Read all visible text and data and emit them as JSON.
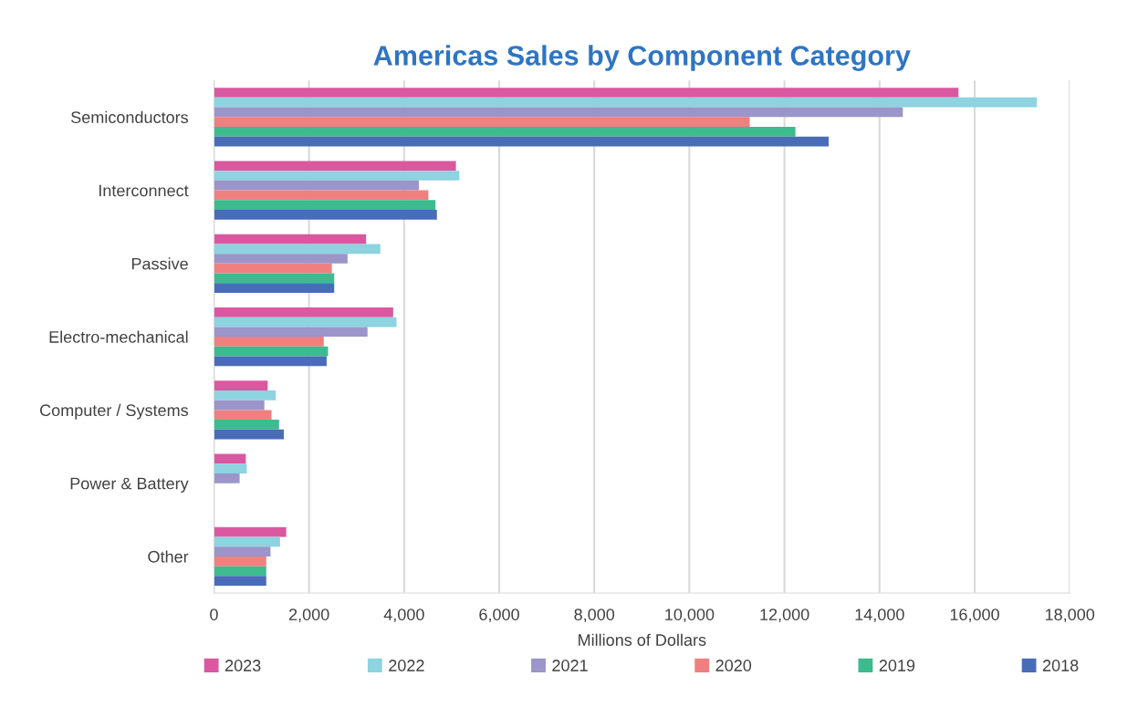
{
  "chart_data": {
    "type": "bar",
    "orientation": "horizontal",
    "title": "Americas Sales by Component Category",
    "xlabel": "Millions of Dollars",
    "categories": [
      "Semiconductors",
      "Interconnect",
      "Passive",
      "Electro-mechanical",
      "Computer / Systems",
      "Power & Battery",
      "Other"
    ],
    "series": [
      {
        "name": "2023",
        "color": "#d9589f",
        "values": [
          15660,
          5090,
          3200,
          3770,
          1130,
          670,
          1520
        ]
      },
      {
        "name": "2022",
        "color": "#8dd3e0",
        "values": [
          17310,
          5160,
          3500,
          3840,
          1300,
          690,
          1390
        ]
      },
      {
        "name": "2021",
        "color": "#9b95c9",
        "values": [
          14490,
          4310,
          2810,
          3230,
          1060,
          540,
          1190
        ]
      },
      {
        "name": "2020",
        "color": "#f08080",
        "values": [
          11270,
          4510,
          2480,
          2310,
          1210,
          null,
          1100
        ]
      },
      {
        "name": "2019",
        "color": "#3dbb8f",
        "values": [
          12230,
          4660,
          2530,
          2400,
          1370,
          null,
          1100
        ]
      },
      {
        "name": "2018",
        "color": "#4a6cb8",
        "values": [
          12930,
          4690,
          2530,
          2370,
          1470,
          null,
          1100
        ]
      }
    ],
    "xlim": [
      0,
      18000
    ],
    "xticks": [
      0,
      {
        "value": 2000,
        "label": "2,000"
      },
      {
        "value": 4000,
        "label": "4,000"
      },
      {
        "value": 6000,
        "label": "6,000"
      },
      {
        "value": 8000,
        "label": "8,000"
      },
      {
        "value": 10000,
        "label": "10,000"
      },
      {
        "value": 12000,
        "label": "12,000"
      },
      {
        "value": 14000,
        "label": "14,000"
      },
      {
        "value": 16000,
        "label": "16,000"
      },
      {
        "value": 18000,
        "label": "18,000"
      }
    ],
    "grid": "x",
    "legend": "bottom"
  }
}
